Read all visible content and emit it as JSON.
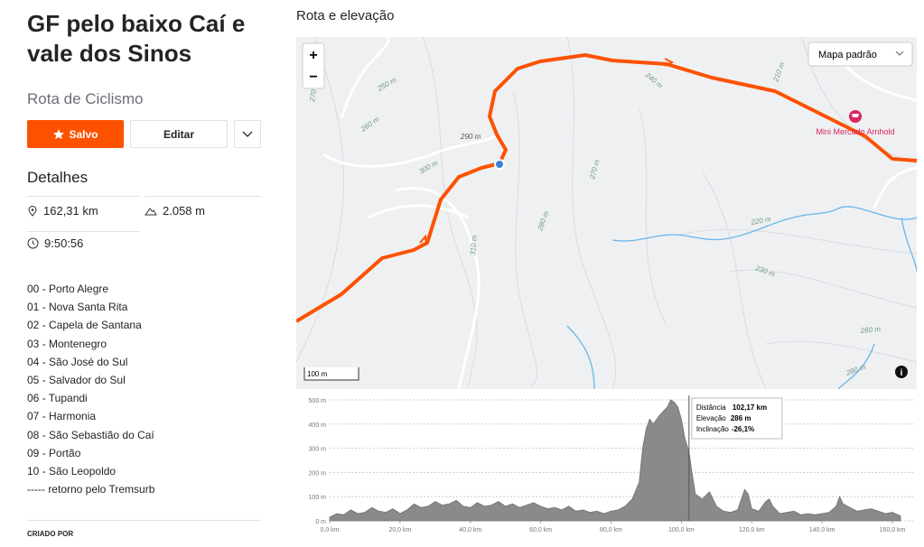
{
  "header": {
    "title": "GF pelo baixo Caí e vale dos Sinos",
    "subtitle": "Rota de Ciclismo"
  },
  "buttons": {
    "saved": "Salvo",
    "edit": "Editar"
  },
  "details": {
    "title": "Detalhes",
    "distance": "162,31 km",
    "elevation_gain": "2.058 m",
    "time": "9:50:56"
  },
  "description": [
    "00 - Porto Alegre",
    "01 - Nova Santa Rita",
    "02 - Capela de Santana",
    "03 - Montenegro",
    "04 - São José do Sul",
    "05 - Salvador do Sul",
    "06 - Tupandi",
    "07 - Harmonia",
    "08 - São Sebastião do Caí",
    "09 - Portão",
    "10 - São Leopoldo",
    "----- retorno pelo Tremsurb"
  ],
  "created_by": "CRIADO POR",
  "map": {
    "title": "Rota e elevação",
    "style": "Mapa padrão",
    "zoom_in": "+",
    "zoom_out": "−",
    "scale": "100 m",
    "poi": "Mini Mercado Arnhold",
    "contours": [
      "270",
      "250 m",
      "260 m",
      "290 m",
      "300 m",
      "310 m",
      "280 m",
      "270 m",
      "240 m",
      "210 m",
      "220 m",
      "230 m",
      "260 m",
      "280 m"
    ]
  },
  "elevation": {
    "x": [
      0,
      2,
      4,
      6,
      8,
      10,
      12,
      14,
      16,
      18,
      20,
      22,
      24,
      26,
      28,
      30,
      32,
      34,
      36,
      38,
      40,
      42,
      44,
      46,
      48,
      50,
      52,
      54,
      56,
      58,
      60,
      62,
      64,
      66,
      68,
      70,
      72,
      74,
      76,
      78,
      80,
      82,
      84,
      86,
      88,
      89,
      90,
      91,
      92,
      94,
      96,
      97,
      98,
      99,
      100,
      101,
      102.17,
      103,
      104,
      106,
      108,
      110,
      112,
      114,
      116,
      118,
      119,
      120,
      122,
      124,
      125,
      126,
      128,
      130,
      132,
      134,
      136,
      138,
      140,
      142,
      144,
      145,
      146,
      148,
      150,
      152,
      154,
      156,
      158,
      160,
      162.31
    ],
    "values": [
      15,
      30,
      25,
      45,
      30,
      35,
      55,
      40,
      35,
      50,
      30,
      45,
      70,
      55,
      60,
      80,
      65,
      70,
      85,
      60,
      55,
      75,
      60,
      65,
      80,
      60,
      70,
      55,
      65,
      75,
      60,
      50,
      55,
      45,
      60,
      40,
      45,
      35,
      40,
      30,
      40,
      45,
      60,
      90,
      160,
      300,
      380,
      420,
      400,
      440,
      470,
      500,
      490,
      470,
      420,
      340,
      286,
      200,
      110,
      90,
      120,
      60,
      40,
      35,
      45,
      130,
      110,
      50,
      40,
      80,
      90,
      60,
      30,
      35,
      40,
      25,
      30,
      25,
      30,
      35,
      60,
      100,
      70,
      55,
      40,
      45,
      50,
      40,
      30,
      35,
      20
    ],
    "color": "#8a8a8a",
    "xlim": [
      0,
      162.31
    ],
    "ylim": [
      0,
      500
    ],
    "xticks": [
      {
        "value": 0,
        "label": "0,0 km"
      },
      {
        "value": 20,
        "label": "20,0 km"
      },
      {
        "value": 40,
        "label": "40,0 km"
      },
      {
        "value": 60,
        "label": "60,0 km"
      },
      {
        "value": 80,
        "label": "80,0 km"
      },
      {
        "value": 100,
        "label": "100,0 km"
      },
      {
        "value": 120,
        "label": "120,0 km"
      },
      {
        "value": 140,
        "label": "140,0 km"
      },
      {
        "value": 160,
        "label": "160,0 km"
      }
    ],
    "yticks": [
      {
        "value": 0,
        "label": "0 m"
      },
      {
        "value": 100,
        "label": "100 m"
      },
      {
        "value": 200,
        "label": "200 m"
      },
      {
        "value": 300,
        "label": "300 m"
      },
      {
        "value": 400,
        "label": "400 m"
      },
      {
        "value": 500,
        "label": "500 m"
      }
    ],
    "grid": true,
    "tooltip": {
      "distance_label": "Distância",
      "distance": {
        "value": 102.17,
        "label": "102,17 km"
      },
      "elevation_label": "Elevação",
      "elevation": {
        "value": 286,
        "label": "286 m"
      },
      "grade_label": "Inclinação",
      "grade": "-26,1%"
    }
  }
}
